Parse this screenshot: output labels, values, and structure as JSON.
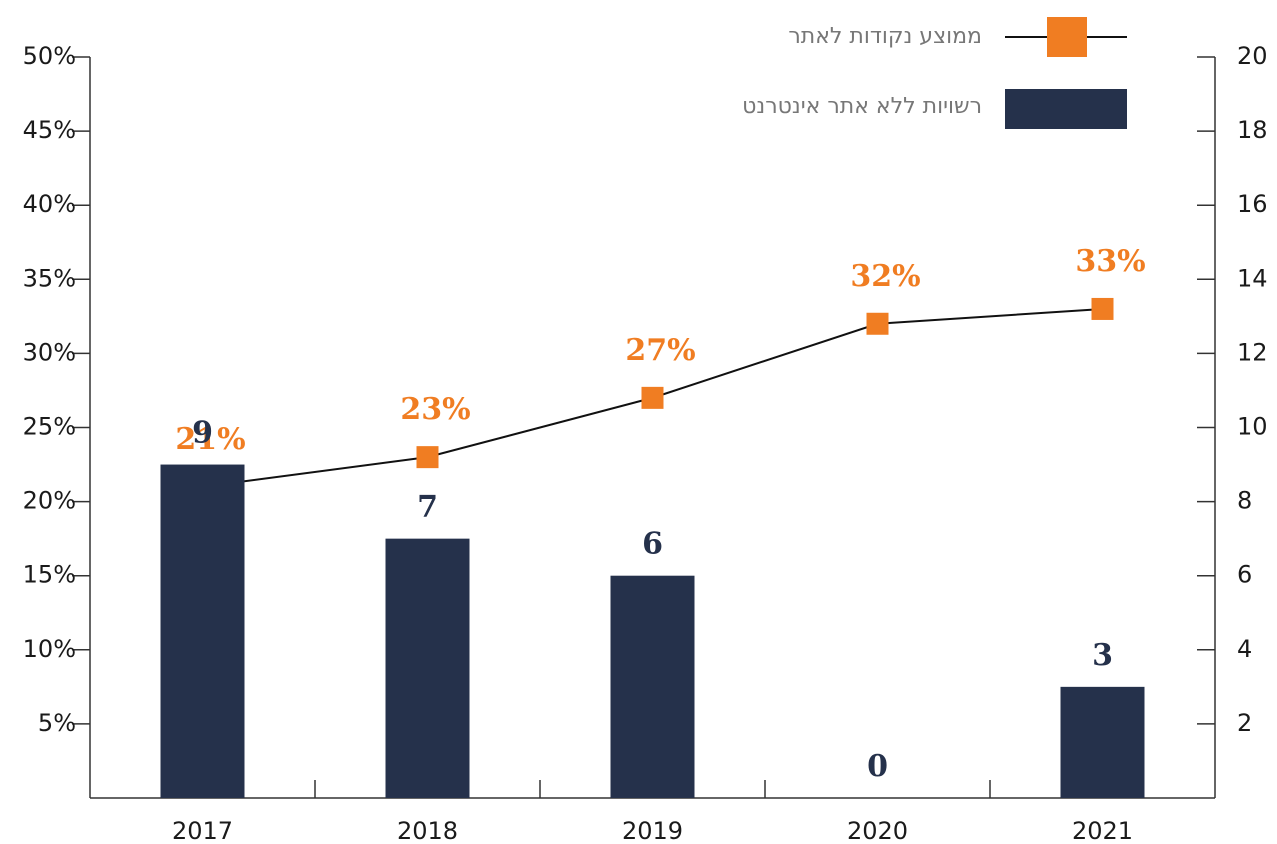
{
  "chart_data": {
    "type": "bar+line",
    "categories": [
      "2017",
      "2018",
      "2019",
      "2020",
      "2021"
    ],
    "series": [
      {
        "name": "ממוצע נקודות לאתר",
        "type": "line",
        "color": "#f07d22",
        "values": [
          21,
          23,
          27,
          32,
          33
        ],
        "value_labels": [
          "21%",
          "23%",
          "27%",
          "32%",
          "33%"
        ]
      },
      {
        "name": "רשויות ללא אתר אינטרנט",
        "type": "bar",
        "axis": "y2",
        "color": "#25314b",
        "values": [
          9,
          7,
          6,
          0,
          3
        ]
      }
    ],
    "ylim": [
      0,
      50
    ],
    "yticks": [
      {
        "value": 5,
        "label": "5%"
      },
      {
        "value": 10,
        "label": "10%"
      },
      {
        "value": 15,
        "label": "15%"
      },
      {
        "value": 20,
        "label": "20%"
      },
      {
        "value": 25,
        "label": "25%"
      },
      {
        "value": 30,
        "label": "30%"
      },
      {
        "value": 35,
        "label": "35%"
      },
      {
        "value": 40,
        "label": "40%"
      },
      {
        "value": 45,
        "label": "45%"
      },
      {
        "value": 50,
        "label": "50%"
      }
    ],
    "y2lim": [
      0,
      20
    ],
    "y2ticks": [
      2,
      4,
      6,
      8,
      10,
      12,
      14,
      16,
      18,
      20
    ],
    "legend": "top-right",
    "grid": false
  }
}
